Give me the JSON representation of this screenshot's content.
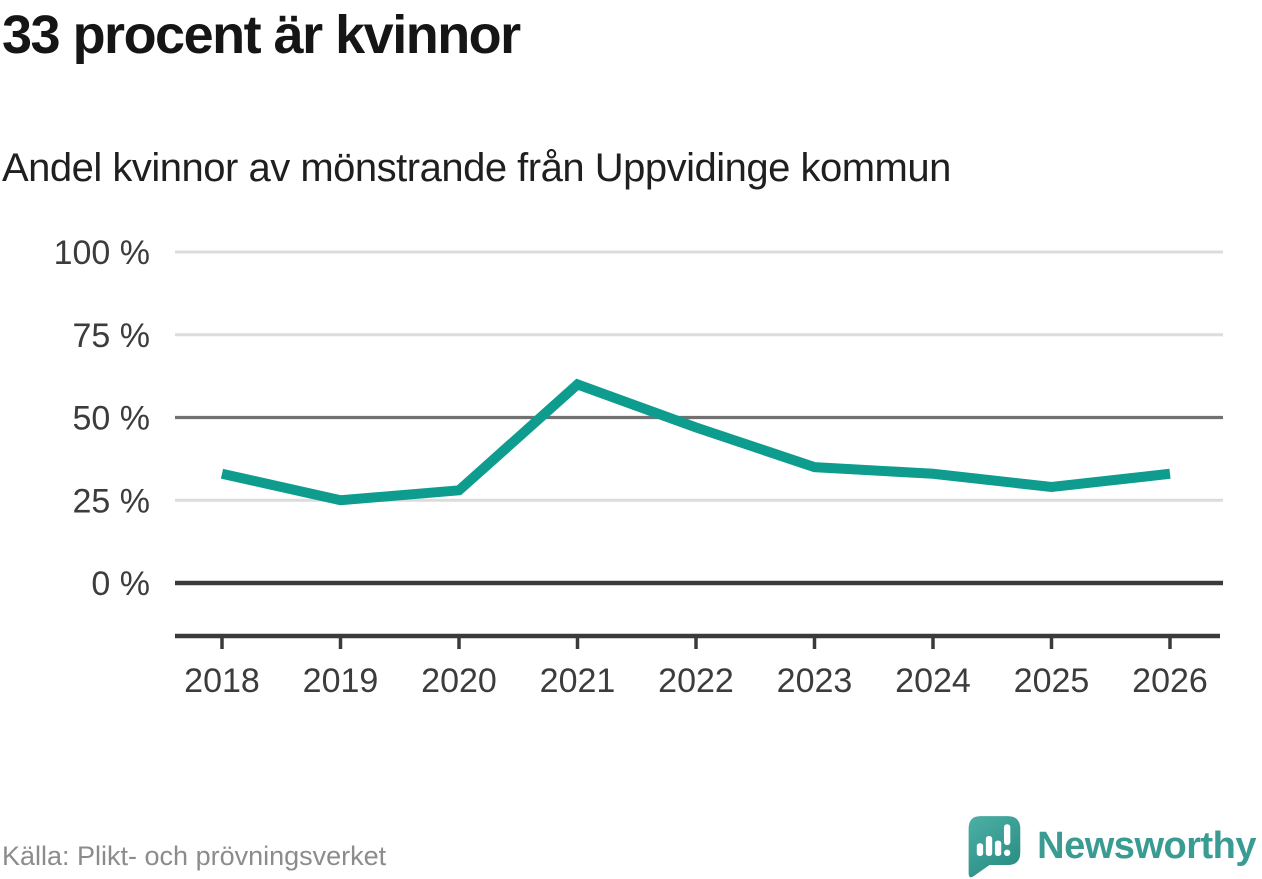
{
  "header": {
    "title": "33 procent är kvinnor",
    "subtitle": "Andel kvinnor av mönstrande från Uppvidinge kommun"
  },
  "footer": {
    "source": "Källa: Plikt- och prövningsverket",
    "brand": "Newsworthy",
    "logo_icon": "newsworthy-speech-bubble-bar-chart-icon"
  },
  "colors": {
    "line": "#0d9c8e",
    "grid_light": "#dcdcdc",
    "grid_mid": "#717171",
    "axis_dark": "#3a3a3a",
    "tick_text": "#3c3c3c",
    "title_text": "#151515",
    "muted_text": "#8c8c8c",
    "brand_teal": "#3a9b93",
    "logo_teal_light": "#4db0a5",
    "logo_teal_dark": "#2b8e85"
  },
  "chart_data": {
    "type": "line",
    "title": "33 procent är kvinnor",
    "subtitle": "Andel kvinnor av mönstrande från Uppvidinge kommun",
    "series_name": "Andel kvinnor av mönstrande",
    "categories": [
      "2018",
      "2019",
      "2020",
      "2021",
      "2022",
      "2023",
      "2024",
      "2025",
      "2026"
    ],
    "values": [
      33,
      25,
      28,
      60,
      47,
      35,
      33,
      29,
      33
    ],
    "unit": "%",
    "xlabel": "",
    "ylabel": "",
    "ylim": [
      0,
      100
    ],
    "yticks": [
      0,
      25,
      50,
      75,
      100
    ],
    "ytick_labels": [
      "0 %",
      "25 %",
      "50 %",
      "75 %",
      "100 %"
    ],
    "emphasized_gridlines": [
      0,
      50
    ],
    "grid": "horizontal",
    "legend": "none"
  }
}
